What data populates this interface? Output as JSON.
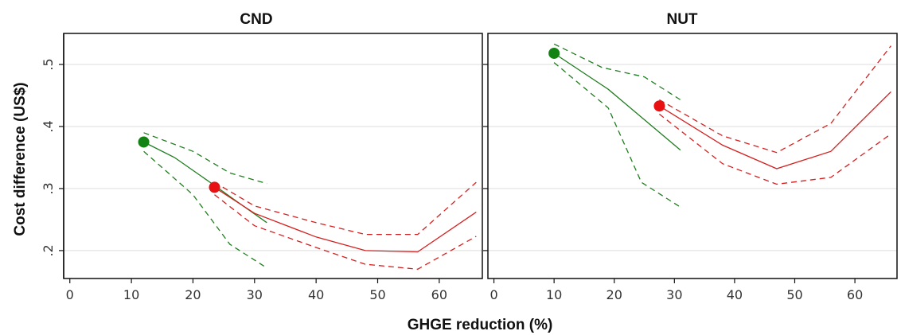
{
  "chart_data": {
    "type": "line",
    "xlabel": "GHGE reduction (%)",
    "ylabel": "Cost difference (US$)",
    "colors": {
      "green": "#1e7d1e",
      "red": "#d42020",
      "point_green": "#128212",
      "point_red": "#e81010"
    },
    "shared_x_ticks": [
      "0",
      "10",
      "20",
      "30",
      "40",
      "50",
      "60"
    ],
    "shared_y_ticks": [
      ".2",
      ".3",
      ".4",
      ".5"
    ],
    "xlim": [
      -1,
      67
    ],
    "ylim": [
      0.155,
      0.55
    ],
    "grid": true,
    "panels": [
      {
        "title": "CND",
        "series": [
          {
            "color": "green",
            "line": [
              [
                12,
                0.375
              ],
              [
                17,
                0.35
              ],
              [
                23.5,
                0.305
              ],
              [
                27,
                0.28
              ],
              [
                32,
                0.245
              ]
            ],
            "lower": [
              [
                12,
                0.36
              ],
              [
                20,
                0.29
              ],
              [
                26,
                0.21
              ],
              [
                32,
                0.172
              ]
            ],
            "upper": [
              [
                12,
                0.39
              ],
              [
                20,
                0.36
              ],
              [
                26,
                0.325
              ],
              [
                32,
                0.308
              ]
            ],
            "point": [
              12,
              0.375
            ]
          },
          {
            "color": "red",
            "line": [
              [
                23.5,
                0.302
              ],
              [
                30,
                0.26
              ],
              [
                40,
                0.222
              ],
              [
                48,
                0.2
              ],
              [
                56.5,
                0.198
              ],
              [
                66,
                0.262
              ]
            ],
            "lower": [
              [
                23.5,
                0.29
              ],
              [
                30,
                0.24
              ],
              [
                40,
                0.205
              ],
              [
                48,
                0.178
              ],
              [
                56.5,
                0.17
              ],
              [
                66,
                0.223
              ]
            ],
            "upper": [
              [
                23.5,
                0.31
              ],
              [
                30,
                0.272
              ],
              [
                40,
                0.245
              ],
              [
                48,
                0.226
              ],
              [
                56.5,
                0.226
              ],
              [
                66,
                0.31
              ]
            ],
            "point": [
              23.5,
              0.302
            ]
          }
        ]
      },
      {
        "title": "NUT",
        "series": [
          {
            "color": "green",
            "line": [
              [
                10,
                0.518
              ],
              [
                19,
                0.46
              ],
              [
                31,
                0.362
              ]
            ],
            "lower": [
              [
                10,
                0.503
              ],
              [
                19,
                0.43
              ],
              [
                24.5,
                0.31
              ],
              [
                31,
                0.27
              ]
            ],
            "upper": [
              [
                10,
                0.533
              ],
              [
                18,
                0.495
              ],
              [
                25,
                0.48
              ],
              [
                31,
                0.443
              ]
            ],
            "point": [
              10,
              0.518
            ]
          },
          {
            "color": "red",
            "line": [
              [
                27.5,
                0.433
              ],
              [
                38,
                0.37
              ],
              [
                47,
                0.332
              ],
              [
                56,
                0.36
              ],
              [
                66,
                0.456
              ]
            ],
            "lower": [
              [
                27.5,
                0.42
              ],
              [
                38,
                0.34
              ],
              [
                47,
                0.307
              ],
              [
                56,
                0.318
              ],
              [
                66,
                0.388
              ]
            ],
            "upper": [
              [
                27.5,
                0.443
              ],
              [
                38,
                0.385
              ],
              [
                47,
                0.358
              ],
              [
                56,
                0.405
              ],
              [
                66,
                0.53
              ]
            ],
            "point": [
              27.5,
              0.433
            ]
          }
        ]
      }
    ]
  }
}
